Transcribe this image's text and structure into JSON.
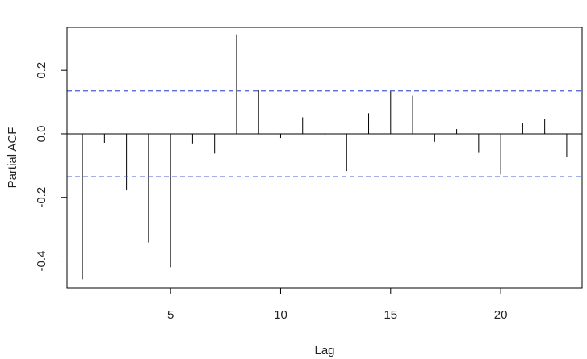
{
  "chart_data": {
    "type": "bar",
    "title": "",
    "xlabel": "Lag",
    "ylabel": "Partial ACF",
    "xlim": [
      0.3,
      23.7
    ],
    "ylim": [
      -0.485,
      0.335
    ],
    "x_ticks": [
      5,
      10,
      15,
      20
    ],
    "y_ticks": [
      -0.4,
      -0.2,
      0.0,
      0.2
    ],
    "y_tick_labels": [
      "-0.4",
      "-0.2",
      "0.0",
      "0.2"
    ],
    "confidence_band": 0.135,
    "lags": [
      1,
      2,
      3,
      4,
      5,
      6,
      7,
      8,
      9,
      10,
      11,
      12,
      13,
      14,
      15,
      16,
      17,
      18,
      19,
      20,
      21,
      22,
      23
    ],
    "values": [
      -0.458,
      -0.028,
      -0.178,
      -0.342,
      -0.42,
      -0.03,
      -0.062,
      0.313,
      0.137,
      -0.013,
      0.052,
      -0.002,
      -0.117,
      0.065,
      0.135,
      0.12,
      -0.025,
      0.015,
      -0.06,
      -0.128,
      0.033,
      0.047,
      -0.072
    ],
    "grid": false,
    "colors": {
      "spike": "#000000",
      "confidence_line": "#4b5bd6",
      "axis": "#000000"
    }
  }
}
